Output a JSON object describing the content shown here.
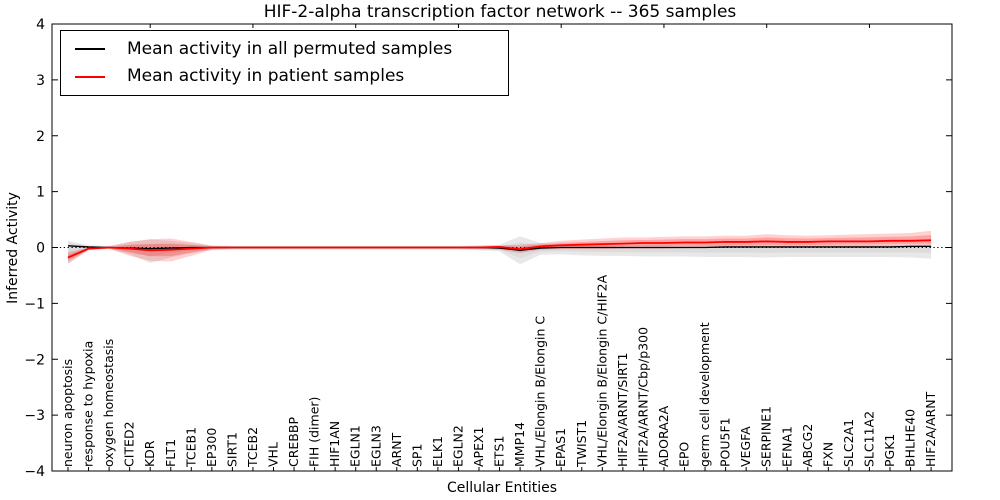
{
  "chart_data": {
    "type": "line",
    "title": "HIF-2-alpha transcription factor network -- 365 samples",
    "xlabel": "Cellular Entities",
    "ylabel": "Inferred Activity",
    "ylim": [
      -4,
      4
    ],
    "grid": false,
    "legend_position": "upper left",
    "zero_reference_line": "dotted",
    "ytick_values": [
      4,
      3,
      2,
      1,
      0,
      -1,
      -2,
      -3,
      -4
    ],
    "ytick_labels": [
      "4",
      "3",
      "2",
      "1",
      "0",
      "−1",
      "−2",
      "−3",
      "−4"
    ],
    "categories": [
      "neuron apoptosis",
      "response to hypoxia",
      "oxygen homeostasis",
      "CITED2",
      "KDR",
      "FLT1",
      "TCEB1",
      "EP300",
      "SIRT1",
      "TCEB2",
      "VHL",
      "CREBBP",
      "FIH (dimer)",
      "HIF1AN",
      "EGLN1",
      "EGLN3",
      "ARNT",
      "SP1",
      "ELK1",
      "EGLN2",
      "APEX1",
      "ETS1",
      "MMP14",
      "VHL/Elongin B/Elongin C",
      "EPAS1",
      "TWIST1",
      "VHL/Elongin B/Elongin C/HIF2A",
      "HIF2A/ARNT/SIRT1",
      "HIF2A/ARNT/Cbp/p300",
      "ADORA2A",
      "EPO",
      "germ cell development",
      "POU5F1",
      "VEGFA",
      "SERPINE1",
      "EFNA1",
      "ABCG2",
      "FXN",
      "SLC2A1",
      "SLC11A2",
      "PGK1",
      "BHLHE40",
      "HIF2A/ARNT"
    ],
    "series": [
      {
        "name": "Mean activity in all permuted samples",
        "color": "#000000",
        "band_color_outer": "rgba(0,0,0,0.09)",
        "band_color_inner": "rgba(0,0,0,0.05)",
        "values": [
          0.03,
          0.01,
          0,
          -0.01,
          -0.02,
          -0.01,
          0,
          0,
          0,
          0,
          0,
          0,
          0,
          0,
          0,
          0,
          0,
          0,
          0,
          0,
          0,
          -0.01,
          -0.05,
          -0.01,
          0,
          0,
          0,
          0,
          0,
          0,
          0,
          0,
          0.01,
          0.01,
          0.01,
          0.01,
          0.01,
          0.01,
          0.01,
          0.01,
          0.01,
          0.02,
          0.02
        ],
        "band_upper": [
          0.12,
          0.04,
          0.03,
          0.1,
          0.14,
          0.12,
          0.08,
          0.04,
          0.03,
          0.03,
          0.03,
          0.03,
          0.03,
          0.03,
          0.03,
          0.03,
          0.03,
          0.03,
          0.03,
          0.03,
          0.04,
          0.05,
          0.2,
          0.08,
          0.05,
          0.05,
          0.05,
          0.04,
          0.04,
          0.04,
          0.04,
          0.05,
          0.05,
          0.05,
          0.05,
          0.05,
          0.05,
          0.05,
          0.05,
          0.05,
          0.05,
          0.05,
          0.06
        ],
        "band_lower": [
          -0.3,
          -0.04,
          -0.03,
          -0.12,
          -0.28,
          -0.18,
          -0.1,
          -0.05,
          -0.04,
          -0.04,
          -0.04,
          -0.04,
          -0.04,
          -0.04,
          -0.04,
          -0.04,
          -0.04,
          -0.04,
          -0.04,
          -0.04,
          -0.05,
          -0.07,
          -0.3,
          -0.13,
          -0.12,
          -0.14,
          -0.15,
          -0.15,
          -0.16,
          -0.16,
          -0.16,
          -0.17,
          -0.17,
          -0.17,
          -0.18,
          -0.17,
          -0.17,
          -0.17,
          -0.17,
          -0.17,
          -0.17,
          -0.18,
          -0.2
        ]
      },
      {
        "name": "Mean activity in patient samples",
        "color": "#ff0000",
        "band_color_outer": "rgba(255,0,0,0.18)",
        "band_color_inner": "rgba(255,0,0,0.22)",
        "values": [
          -0.18,
          -0.02,
          0,
          -0.02,
          -0.05,
          -0.04,
          -0.02,
          0,
          0,
          0,
          0,
          0,
          0,
          0,
          0,
          0,
          0,
          0,
          0,
          0,
          0,
          0.01,
          -0.03,
          0.02,
          0.04,
          0.05,
          0.06,
          0.07,
          0.08,
          0.08,
          0.09,
          0.09,
          0.1,
          0.1,
          0.11,
          0.1,
          0.1,
          0.11,
          0.11,
          0.11,
          0.12,
          0.12,
          0.13
        ],
        "band_upper": [
          -0.08,
          0,
          0.02,
          0.1,
          0.15,
          0.16,
          0.1,
          0.03,
          0.02,
          0.02,
          0.02,
          0.02,
          0.02,
          0.02,
          0.02,
          0.02,
          0.02,
          0.02,
          0.02,
          0.02,
          0.03,
          0.04,
          0.05,
          0.08,
          0.12,
          0.14,
          0.16,
          0.18,
          0.18,
          0.19,
          0.2,
          0.2,
          0.21,
          0.21,
          0.24,
          0.22,
          0.21,
          0.22,
          0.23,
          0.24,
          0.25,
          0.26,
          0.3
        ],
        "band_lower": [
          -0.28,
          -0.05,
          -0.02,
          -0.15,
          -0.24,
          -0.25,
          -0.15,
          -0.04,
          -0.02,
          -0.02,
          -0.02,
          -0.02,
          -0.02,
          -0.02,
          -0.02,
          -0.02,
          -0.02,
          -0.02,
          -0.02,
          -0.02,
          -0.03,
          -0.04,
          -0.1,
          -0.04,
          -0.03,
          -0.03,
          -0.03,
          -0.02,
          -0.02,
          -0.02,
          -0.01,
          -0.01,
          -0.01,
          0,
          0,
          0,
          0,
          0,
          0.01,
          0.01,
          0.01,
          0.02,
          0.02
        ]
      }
    ]
  }
}
